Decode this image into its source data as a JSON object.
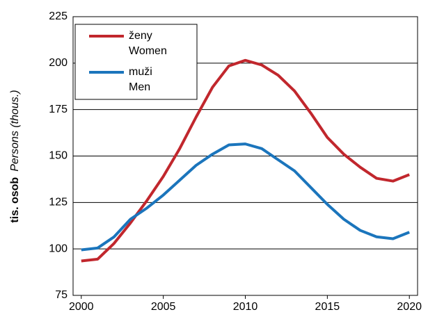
{
  "chart_data": {
    "type": "line",
    "ylabel_cs": "tis. osob",
    "ylabel_en": "Persons (thous.)",
    "x": [
      2000,
      2001,
      2002,
      2003,
      2004,
      2005,
      2006,
      2007,
      2008,
      2009,
      2010,
      2011,
      2012,
      2013,
      2014,
      2015,
      2016,
      2017,
      2018,
      2019,
      2020
    ],
    "series": [
      {
        "name": "ženy\nWomen",
        "color": "#c1272d",
        "values": [
          93.5,
          94.5,
          103,
          114,
          126,
          139,
          154,
          171,
          187,
          198.5,
          201.5,
          199,
          193.5,
          185,
          173,
          160,
          151,
          144,
          138,
          136.5,
          140
        ]
      },
      {
        "name": "muži\nMen",
        "color": "#1b75bc",
        "values": [
          99.5,
          100.5,
          106.5,
          116,
          122,
          129,
          137,
          145,
          151,
          156,
          156.5,
          154,
          148,
          142,
          133,
          124,
          116,
          110,
          106.5,
          105.5,
          109
        ]
      }
    ],
    "xlim": [
      1999.5,
      2020.5
    ],
    "xticks": [
      2000,
      2005,
      2010,
      2015,
      2020
    ],
    "ylim": [
      75,
      225
    ],
    "yticks": [
      75,
      100,
      125,
      150,
      175,
      200,
      225
    ],
    "grid": true,
    "legend": "upper left"
  }
}
